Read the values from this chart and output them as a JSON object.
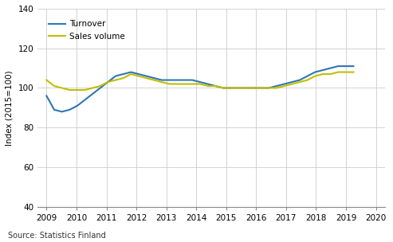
{
  "turnover": [
    96,
    89,
    88,
    89,
    91,
    94,
    97,
    100,
    103,
    106,
    107,
    108,
    107,
    106,
    105,
    104,
    104,
    104,
    104,
    104,
    103,
    102,
    101,
    100,
    100,
    100,
    100,
    100,
    100,
    100,
    101,
    102,
    103,
    104,
    106,
    108,
    109,
    110,
    111,
    111,
    111
  ],
  "sales_volume": [
    104,
    101,
    100,
    99,
    99,
    99,
    100,
    101,
    103,
    104,
    105,
    107,
    106,
    105,
    104,
    103,
    102,
    102,
    102,
    102,
    102,
    101,
    101,
    100,
    100,
    100,
    100,
    100,
    100,
    100,
    100,
    101,
    102,
    103,
    104,
    106,
    107,
    107,
    108,
    108,
    108
  ],
  "x_start": 2009.0,
  "x_end": 2019.25,
  "n_points": 41,
  "turnover_color": "#2e75b6",
  "sales_volume_color": "#bfbf00",
  "ylabel": "Index (2015=100)",
  "ylim": [
    40,
    140
  ],
  "yticks": [
    40,
    60,
    80,
    100,
    120,
    140
  ],
  "xticks": [
    2009,
    2010,
    2011,
    2012,
    2013,
    2014,
    2015,
    2016,
    2017,
    2018,
    2019,
    2020
  ],
  "xlim_left": 2008.7,
  "xlim_right": 2020.3,
  "source_text": "Source: Statistics Finland",
  "legend_turnover": "Turnover",
  "legend_sales": "Sales volume",
  "background_color": "#ffffff",
  "grid_color": "#cccccc",
  "line_width": 1.5,
  "tick_fontsize": 7.5,
  "ylabel_fontsize": 7.5,
  "legend_fontsize": 7.5,
  "source_fontsize": 7.0
}
